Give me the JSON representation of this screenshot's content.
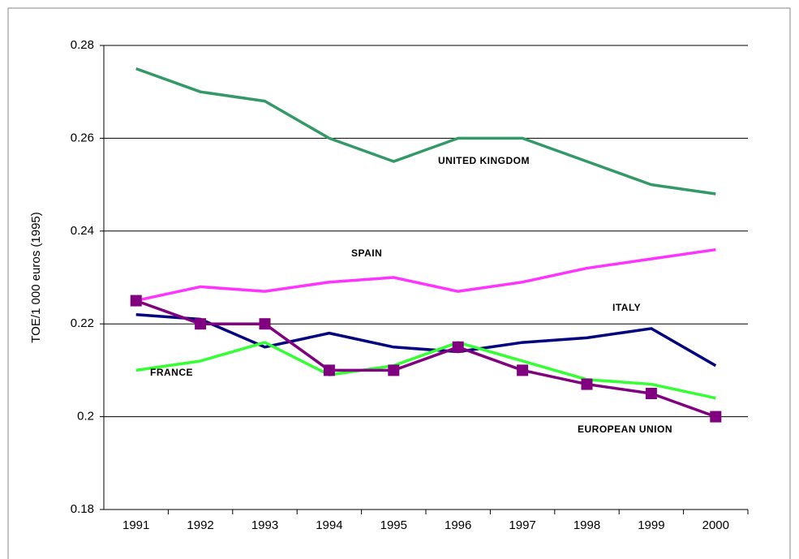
{
  "chart_data": {
    "type": "line",
    "y_label": "TOE/1 000 euros (1995)",
    "categories": [
      "1991",
      "1992",
      "1993",
      "1994",
      "1995",
      "1996",
      "1997",
      "1998",
      "1999",
      "2000"
    ],
    "series": [
      {
        "name": "UNITED KINGDOM",
        "color": "#339966",
        "values": [
          0.275,
          0.27,
          0.268,
          0.26,
          0.255,
          0.26,
          0.26,
          0.255,
          0.25,
          0.248
        ]
      },
      {
        "name": "SPAIN",
        "color": "#ff33ff",
        "values": [
          0.225,
          0.228,
          0.227,
          0.229,
          0.23,
          0.227,
          0.229,
          0.232,
          0.234,
          0.236
        ]
      },
      {
        "name": "ITALY",
        "color": "#000080",
        "values": [
          0.222,
          0.221,
          0.215,
          0.218,
          0.215,
          0.214,
          0.216,
          0.217,
          0.219,
          0.211
        ]
      },
      {
        "name": "FRANCE",
        "color": "#33ff33",
        "values": [
          0.21,
          0.212,
          0.216,
          0.209,
          0.211,
          0.216,
          0.212,
          0.208,
          0.207,
          0.204
        ]
      },
      {
        "name": "EUROPEAN UNION",
        "color": "#800080",
        "values": [
          0.225,
          0.22,
          0.22,
          0.21,
          0.21,
          0.215,
          0.21,
          0.207,
          0.205,
          0.2
        ],
        "marker": "square"
      }
    ],
    "ylim": [
      0.18,
      0.28
    ],
    "yticks": [
      0.18,
      0.2,
      0.22,
      0.24,
      0.26,
      0.28
    ],
    "grid": true
  }
}
